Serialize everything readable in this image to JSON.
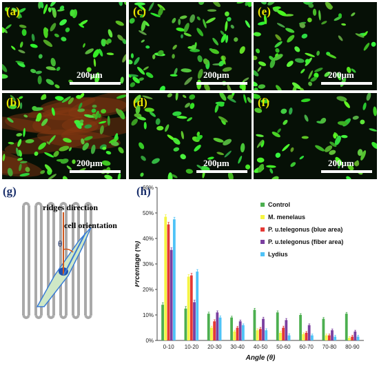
{
  "panels": [
    {
      "id": "a",
      "label": "(a)",
      "scale": "200μm",
      "tint": "green"
    },
    {
      "id": "c",
      "label": "(c)",
      "scale": "200μm",
      "tint": "green"
    },
    {
      "id": "e",
      "label": "(e)",
      "scale": "200μm",
      "tint": "green"
    },
    {
      "id": "b",
      "label": "(b)",
      "scale": "200μm",
      "tint": "orange"
    },
    {
      "id": "d",
      "label": "(d)",
      "scale": "200μm",
      "tint": "green"
    },
    {
      "id": "f",
      "label": "(f)",
      "scale": "200μm",
      "tint": "green"
    }
  ],
  "diagram": {
    "label": "(g)",
    "ridges_text": "ridges direction",
    "cell_text": "cell orientation",
    "theta": "θ"
  },
  "chart_label": "(h)",
  "chart_data": {
    "type": "bar",
    "categories": [
      "0-10",
      "10-20",
      "20-30",
      "30-40",
      "40-50",
      "50-60",
      "60-70",
      "70-80",
      "80-90"
    ],
    "series": [
      {
        "name": "Control",
        "color": "#4caf50",
        "values": [
          14,
          12.5,
          10.5,
          9,
          12,
          11,
          10,
          8.5,
          10.5
        ]
      },
      {
        "name": "M. menelaus",
        "color": "#f5f542",
        "values": [
          48.5,
          25,
          5,
          3.5,
          4,
          3,
          2.5,
          2,
          1
        ]
      },
      {
        "name": "P. u.telegonus (blue area)",
        "color": "#e53935",
        "values": [
          45.5,
          25.5,
          7.5,
          5,
          4.5,
          5,
          3,
          2,
          1.5
        ]
      },
      {
        "name": "P. u.telegonus (fiber area)",
        "color": "#7b3fa0",
        "values": [
          35.5,
          15,
          11,
          7.5,
          8.5,
          8,
          6,
          4,
          3.5
        ]
      },
      {
        "name": "Lydius",
        "color": "#4fc3f7",
        "values": [
          47.5,
          27,
          9,
          6,
          4,
          2,
          2,
          1.5,
          1.5
        ]
      }
    ],
    "errors": [
      0.8,
      0.8,
      0.6,
      0.5,
      0.6,
      0.6,
      0.5,
      0.5,
      0.5
    ],
    "xlabel": "Angle (θ)",
    "ylabel": "Prcentage (%)",
    "yticks": [
      "0%",
      "10%",
      "20%",
      "30%",
      "40%",
      "50%",
      "60%"
    ],
    "ylim": [
      0,
      60
    ]
  }
}
